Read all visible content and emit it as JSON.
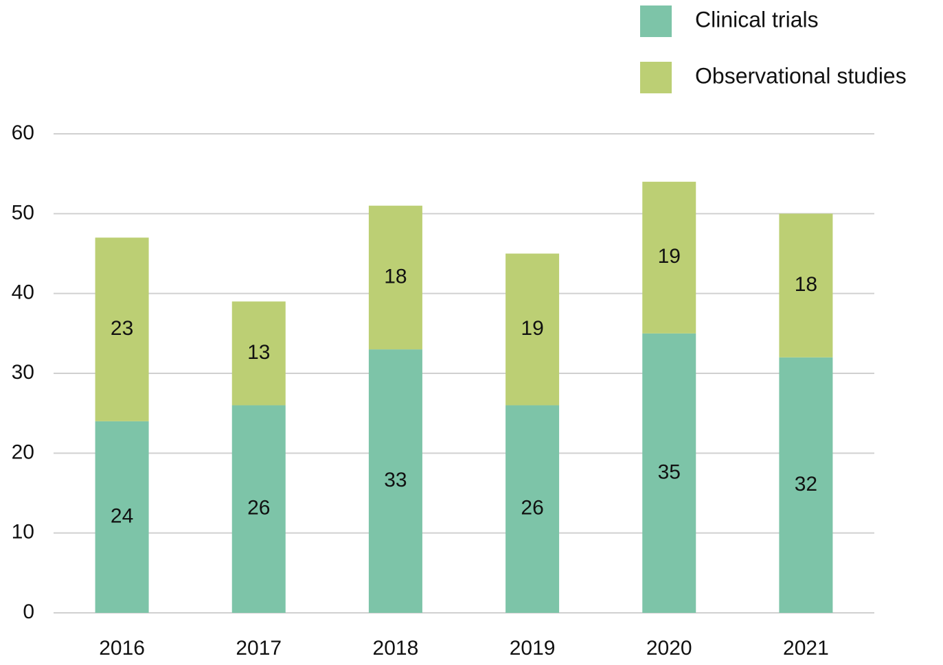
{
  "chart_data": {
    "type": "bar",
    "stacked": true,
    "categories": [
      "2016",
      "2017",
      "2018",
      "2019",
      "2020",
      "2021"
    ],
    "series": [
      {
        "name": "Clinical trials",
        "color": "#7dc4a8",
        "values": [
          24,
          26,
          33,
          26,
          35,
          32
        ]
      },
      {
        "name": "Observational studies",
        "color": "#bccf74",
        "values": [
          23,
          13,
          18,
          19,
          19,
          18
        ]
      }
    ],
    "ylim": [
      0,
      60
    ],
    "yticks": [
      0,
      10,
      20,
      30,
      40,
      50,
      60
    ],
    "grid": true,
    "legend": "top-right"
  }
}
